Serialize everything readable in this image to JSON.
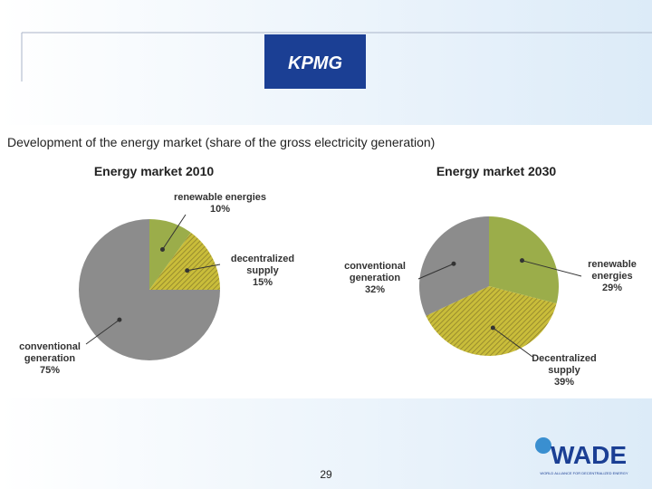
{
  "heading": "Development of the energy market (share of the gross electricity generation)",
  "logos": {
    "top": "KPMG",
    "bottom": "WADE",
    "bottom_caption": "WORLD ALLIANCE FOR DECENTRALIZED ENERGY"
  },
  "page_number": "29",
  "chart_data": [
    {
      "type": "pie",
      "title": "Energy market 2010",
      "categories": [
        "renewable energies",
        "decentralized supply",
        "conventional generation"
      ],
      "values": [
        10,
        15,
        75
      ],
      "value_labels": [
        "10%",
        "15%",
        "75%"
      ],
      "colors": [
        "#9bad4a",
        "#c9bd3a",
        "#8c8c8c"
      ]
    },
    {
      "type": "pie",
      "title": "Energy market 2030",
      "categories": [
        "renewable energies",
        "Decentralized supply",
        "conventional generation"
      ],
      "values": [
        29,
        39,
        32
      ],
      "value_labels": [
        "29%",
        "39%",
        "32%"
      ],
      "colors": [
        "#9bad4a",
        "#c9bd3a",
        "#8c8c8c"
      ]
    }
  ]
}
